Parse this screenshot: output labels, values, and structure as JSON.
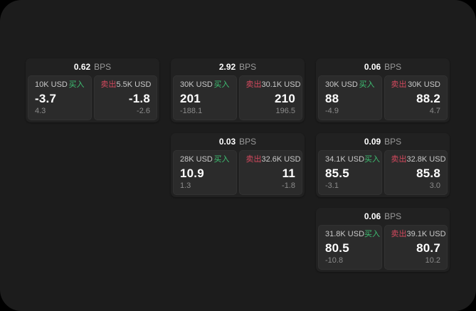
{
  "labels": {
    "bps_suffix": "BPS",
    "buy": "买入",
    "sell": "卖出"
  },
  "colors": {
    "page_background": "#000000",
    "surface": "#1c1c1c",
    "card_background": "#212121",
    "tile_background": "#2b2b2b",
    "buy_green": "#3ebf72",
    "sell_red": "#d4495e",
    "text_primary": "#ffffff",
    "text_secondary": "#c9c9c9",
    "text_muted": "#8b8b8b"
  },
  "cards": [
    {
      "col": 1,
      "row": 1,
      "bps": "0.62",
      "buy": {
        "notional": "10K USD",
        "price": "-3.7",
        "delta": "4.3"
      },
      "sell": {
        "notional": "5.5K USD",
        "price": "-1.8",
        "delta": "-2.6"
      }
    },
    {
      "col": 2,
      "row": 1,
      "bps": "2.92",
      "buy": {
        "notional": "30K USD",
        "price": "201",
        "delta": "-188.1"
      },
      "sell": {
        "notional": "30.1K USD",
        "price": "210",
        "delta": "196.5"
      }
    },
    {
      "col": 3,
      "row": 1,
      "bps": "0.06",
      "buy": {
        "notional": "30K USD",
        "price": "88",
        "delta": "-4.9"
      },
      "sell": {
        "notional": "30K USD",
        "price": "88.2",
        "delta": "4.7"
      }
    },
    {
      "col": 2,
      "row": 2,
      "bps": "0.03",
      "buy": {
        "notional": "28K USD",
        "price": "10.9",
        "delta": "1.3"
      },
      "sell": {
        "notional": "32.6K USD",
        "price": "11",
        "delta": "-1.8"
      }
    },
    {
      "col": 3,
      "row": 2,
      "bps": "0.09",
      "buy": {
        "notional": "34.1K USD",
        "price": "85.5",
        "delta": "-3.1"
      },
      "sell": {
        "notional": "32.8K USD",
        "price": "85.8",
        "delta": "3.0"
      }
    },
    {
      "col": 3,
      "row": 3,
      "bps": "0.06",
      "buy": {
        "notional": "31.8K USD",
        "price": "80.5",
        "delta": "-10.8"
      },
      "sell": {
        "notional": "39.1K USD",
        "price": "80.7",
        "delta": "10.2"
      }
    }
  ]
}
